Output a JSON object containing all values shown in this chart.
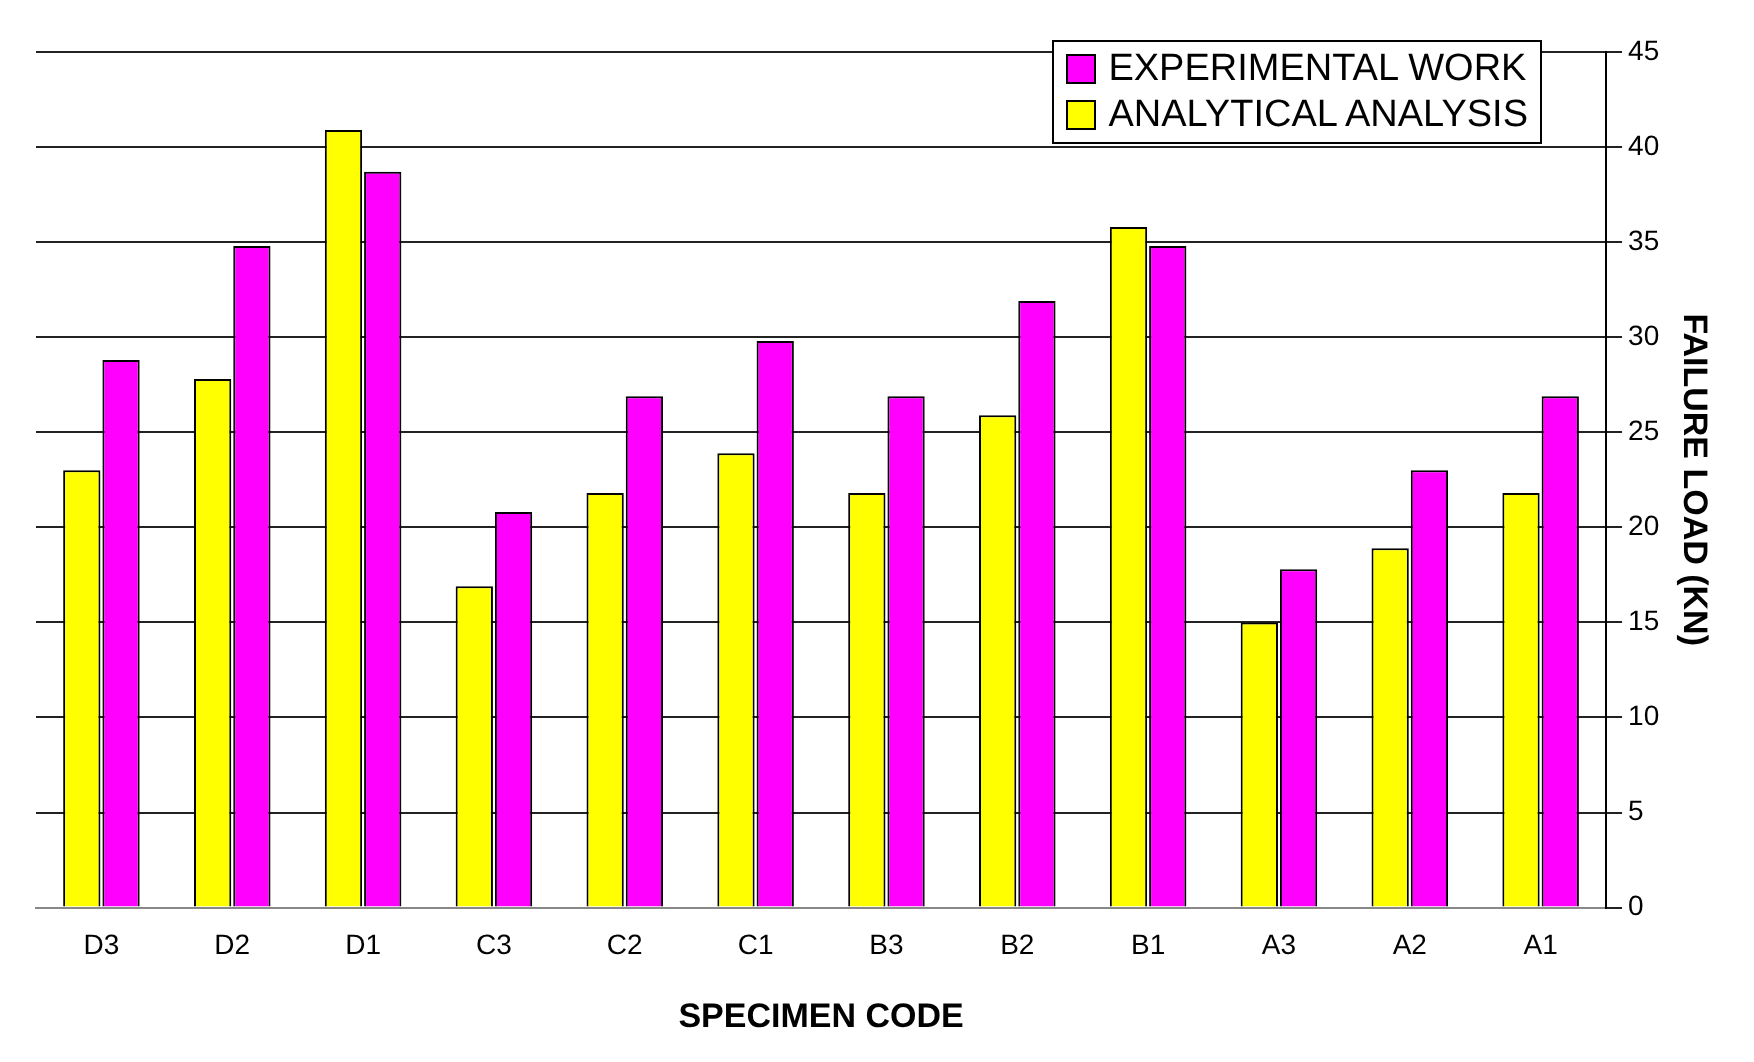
{
  "chart_data": {
    "type": "bar",
    "xlabel": "SPECIMEN CODE",
    "ylabel": "FAILURE LOAD (KN)",
    "categories": [
      "D3",
      "D2",
      "D1",
      "C3",
      "C2",
      "C1",
      "B3",
      "B2",
      "B1",
      "A3",
      "A2",
      "A1"
    ],
    "series": [
      {
        "name": "ANALYTICAL ANALYSIS",
        "color": "#ffff00",
        "values": [
          23,
          27.8,
          40.9,
          16.9,
          21.8,
          23.9,
          21.8,
          25.9,
          35.8,
          15,
          18.9,
          21.8
        ]
      },
      {
        "name": "EXPERIMENTAL WORK",
        "color": "#ff00ff",
        "values": [
          28.8,
          34.8,
          38.7,
          20.8,
          26.9,
          29.8,
          26.9,
          31.9,
          34.8,
          17.8,
          23,
          26.9
        ]
      }
    ],
    "ylim": [
      0,
      45
    ],
    "yticks": [
      0,
      5,
      10,
      15,
      20,
      25,
      30,
      35,
      40,
      45
    ],
    "grid": "y",
    "legend": "top right"
  }
}
